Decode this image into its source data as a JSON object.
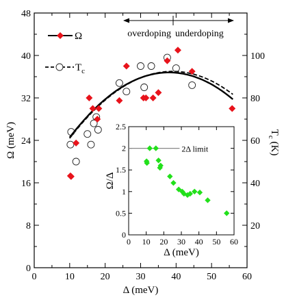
{
  "chart_data": [
    {
      "type": "scatter",
      "xlabel": "Δ (meV)",
      "ylabel": "Ω (meV)",
      "y2label": "T",
      "y2label_sub": "c",
      "y2label_unit": "(K)",
      "xlim": [
        0,
        60
      ],
      "ylim": [
        0,
        48
      ],
      "y2lim": [
        0,
        120
      ],
      "xticks": [
        0,
        10,
        20,
        30,
        40,
        50,
        60
      ],
      "yticks": [
        0,
        8,
        16,
        24,
        32,
        40,
        48
      ],
      "y2ticks": [
        20,
        40,
        60,
        80,
        100
      ],
      "annotations": {
        "left": "overdoping",
        "right": "underdoping"
      },
      "series": [
        {
          "name": "Ω",
          "marker": "red-diamond",
          "color": "#e8131b",
          "axis": "left",
          "x": [
            10.2,
            10.4,
            11.8,
            15.5,
            16.5,
            17.8,
            18.2,
            24.0,
            26.0,
            30.8,
            31.5,
            33.5,
            35.0,
            37.5,
            40.5,
            44.5,
            55.8
          ],
          "y": [
            17.3,
            17.2,
            23.5,
            32.0,
            30.0,
            28.0,
            30.0,
            31.5,
            38.0,
            32.0,
            32.0,
            32.0,
            33.0,
            39.0,
            41.0,
            37.0,
            30.0
          ]
        },
        {
          "name": "T",
          "name_sub": "c",
          "marker": "open-circle",
          "color": "#000000",
          "axis": "right",
          "x": [
            10.2,
            10.4,
            11.8,
            15.0,
            16.0,
            16.8,
            17.5,
            18.0,
            24.0,
            26.0,
            30.0,
            31.0,
            33.0,
            37.5,
            40.0,
            44.5
          ],
          "y": [
            58.0,
            64.0,
            50.0,
            63.0,
            58.0,
            68.0,
            71.0,
            65.0,
            87.0,
            83.0,
            95.0,
            85.0,
            95.0,
            99.0,
            94.0,
            86.0
          ]
        }
      ],
      "fits": [
        {
          "style": "solid",
          "axis": "left",
          "a": -0.015625,
          "b": 38,
          "c": 36.8,
          "x_range": [
            10,
            56
          ]
        },
        {
          "style": "dashed",
          "axis": "right",
          "a": -0.0375,
          "b": 39,
          "c": 92.5,
          "x_range": [
            10,
            56
          ]
        }
      ]
    },
    {
      "type": "scatter",
      "xlabel": "Δ (meV)",
      "ylabel": "Ω/Δ",
      "xlim": [
        0,
        60
      ],
      "ylim": [
        0,
        2.5
      ],
      "xticks": [
        0,
        10,
        20,
        30,
        40,
        50,
        60
      ],
      "yticks": [
        0,
        0.5,
        1,
        1.5,
        2,
        2.5
      ],
      "ytick_labels": [
        "0",
        "0.5",
        "1",
        "1.5",
        "2",
        "2.5"
      ],
      "reference_line": {
        "y": 2,
        "x_range": [
          0,
          29
        ],
        "label": "2Δ limit"
      },
      "series": [
        {
          "name": "",
          "marker": "green-diamond",
          "color": "#22e01b",
          "x": [
            10.2,
            10.4,
            12.0,
            15.5,
            17.0,
            17.8,
            18.2,
            23.5,
            25.5,
            28.5,
            30.5,
            31.5,
            33.5,
            35.0,
            37.5,
            40.5,
            45.0,
            55.8
          ],
          "y": [
            1.7,
            1.66,
            2.0,
            2.0,
            1.72,
            1.55,
            1.6,
            1.35,
            1.2,
            1.05,
            1.0,
            0.95,
            0.92,
            0.95,
            1.0,
            0.98,
            0.8,
            0.5
          ]
        }
      ]
    }
  ]
}
